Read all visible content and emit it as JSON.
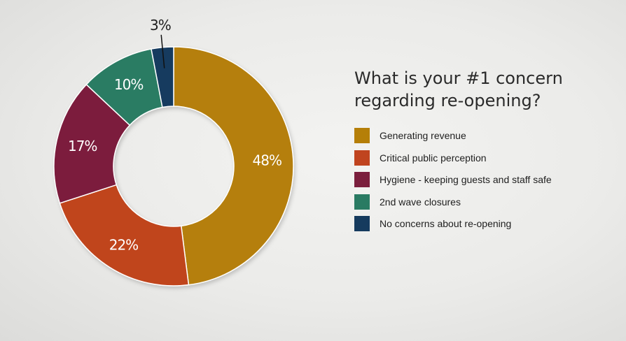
{
  "chart_data": {
    "type": "pie",
    "title": "What is your #1 concern regarding re-opening?",
    "categories": [
      "Generating revenue",
      "Critical public perception",
      "Hygiene - keeping guests and staff safe",
      "2nd wave closures",
      "No concerns about re-opening"
    ],
    "values": [
      48,
      22,
      17,
      10,
      3
    ],
    "data_labels": [
      "48%",
      "22%",
      "17%",
      "10%",
      "3%"
    ],
    "colors": [
      "#b57f08",
      "#c0441f",
      "#7b1f3d",
      "#2a7b63",
      "#163b5e"
    ],
    "donut": true,
    "legend_position": "right"
  }
}
